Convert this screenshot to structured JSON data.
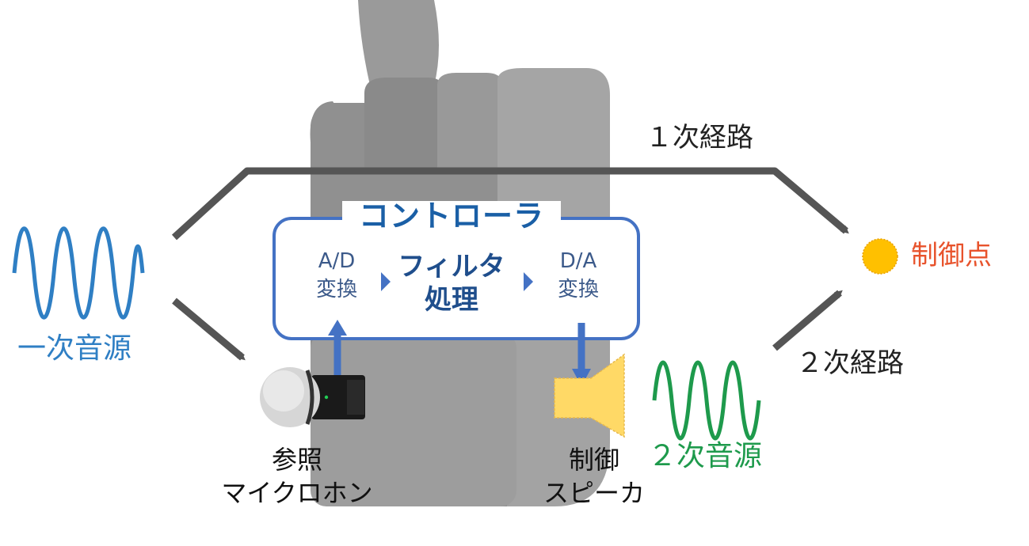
{
  "controller": {
    "title": "コントローラ",
    "ad_line1": "A/D",
    "ad_line2": "変換",
    "filter_line1": "フィルタ",
    "filter_line2": "処理",
    "da_line1": "D/A",
    "da_line2": "変換"
  },
  "paths": {
    "primary": "１次経路",
    "secondary": "２次経路"
  },
  "nodes": {
    "control_point": "制御点",
    "primary_source": "一次音源",
    "secondary_source": "２次音源",
    "reference_mic_line1": "参照",
    "reference_mic_line2": "マイクロホン",
    "control_speaker_line1": "制御",
    "control_speaker_line2": "スピーカ"
  },
  "colors": {
    "controller_border": "#4472c4",
    "controller_title": "#1a5fa6",
    "arrow_gray": "#555555",
    "signal_blue": "#4472c4",
    "primary_wave": "#2f7fc4",
    "secondary_wave": "#1e9a4c",
    "control_point": "#ffc000",
    "control_point_label": "#e8532c",
    "speaker_fill": "#ffd966",
    "hand_gray": "#9e9e9e"
  },
  "icons": {
    "hand": "thumbs-up-hand-silhouette",
    "microphone": "microphone-icon",
    "speaker": "speaker-icon",
    "control_point": "dot-icon"
  }
}
